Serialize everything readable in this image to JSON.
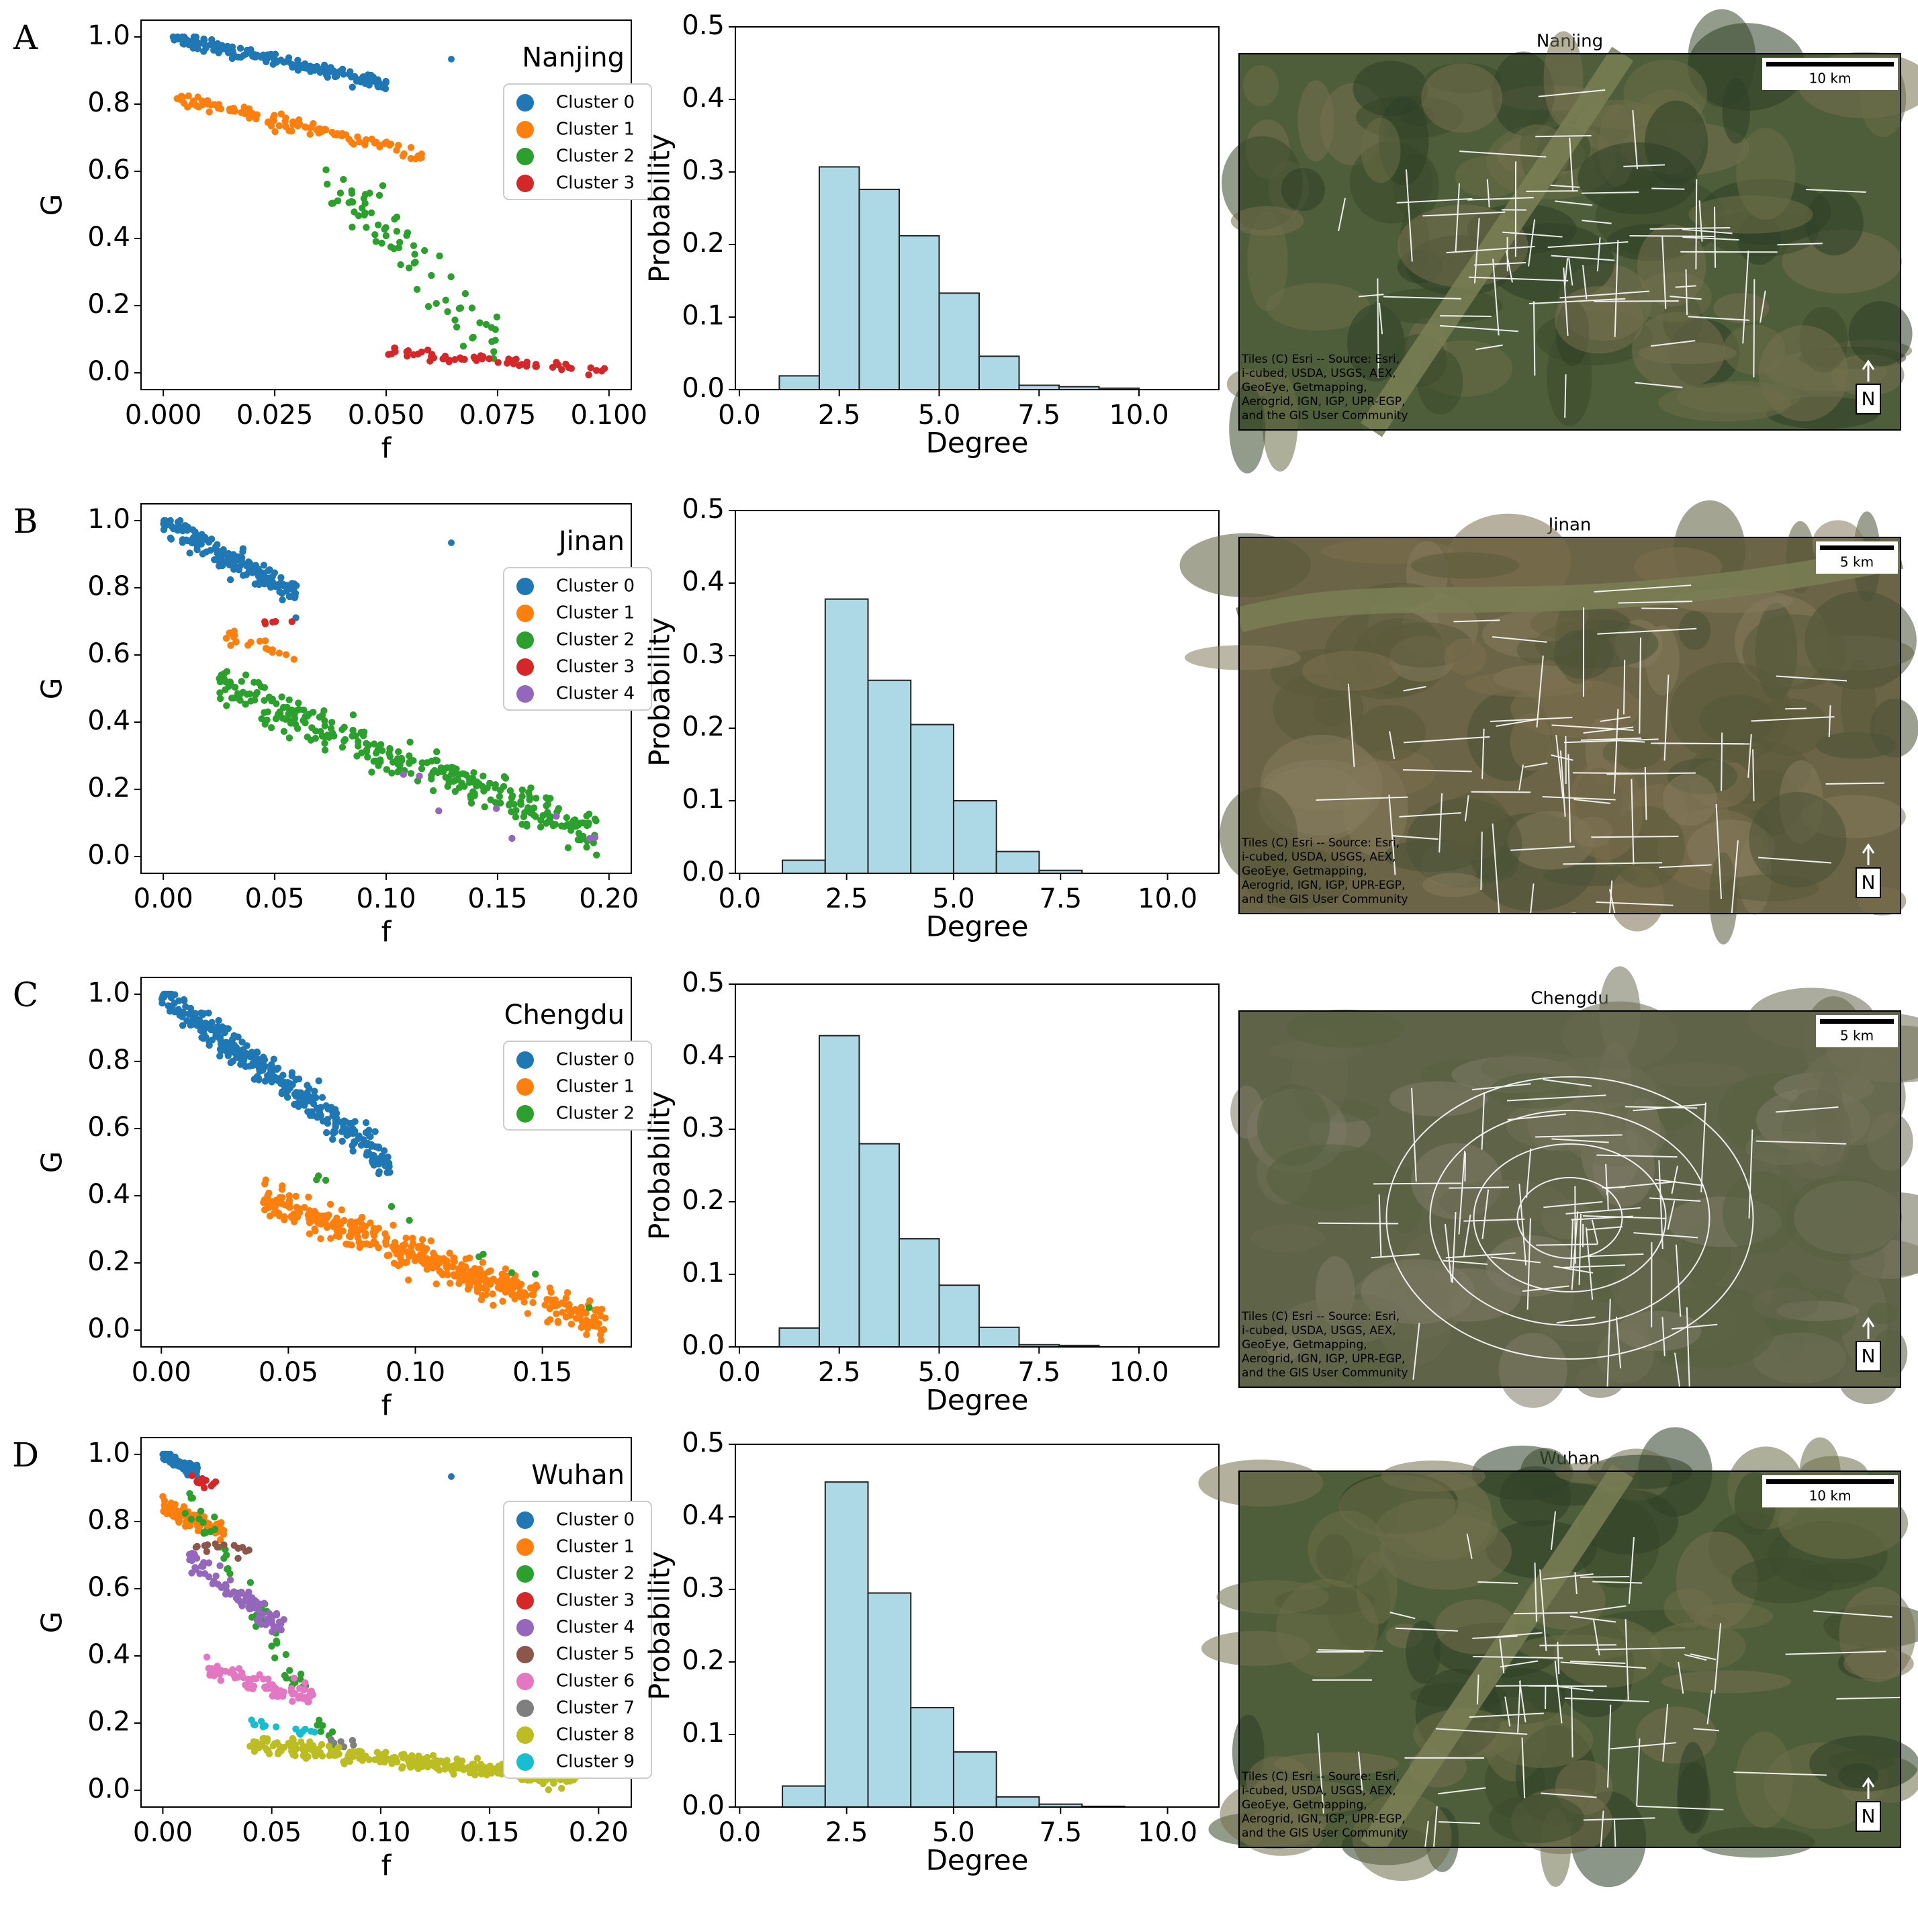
{
  "cluster_colors": [
    "#1f77b4",
    "#ff7f0e",
    "#2ca02c",
    "#d62728",
    "#9467bd",
    "#8c564b",
    "#e377c2",
    "#7f7f7f",
    "#bcbd22",
    "#17becf"
  ],
  "hist_style": {
    "fill": "#add8e6",
    "edge": "#222222"
  },
  "rows": [
    {
      "letter": "A",
      "city": "Nanjing",
      "scatter": {
        "type": "scatter",
        "xlabel": "f",
        "ylabel": "G",
        "xlim": [
          -0.005,
          0.105
        ],
        "ylim": [
          -0.05,
          1.05
        ],
        "xticks": [
          0.0,
          0.025,
          0.05,
          0.075,
          0.1
        ],
        "xtick_labels": [
          "0.000",
          "0.025",
          "0.050",
          "0.075",
          "0.100"
        ],
        "yticks": [
          0.0,
          0.2,
          0.4,
          0.6,
          0.8,
          1.0
        ],
        "ytick_labels": [
          "0.0",
          "0.2",
          "0.4",
          "0.6",
          "0.8",
          "1.0"
        ],
        "legend_title": "Nanjing",
        "legend_has_marker": true,
        "clusters": [
          {
            "name": "Cluster 0",
            "color_index": 0,
            "n": 160,
            "x_range": [
              0.002,
              0.05
            ],
            "y_start": 1.0,
            "y_end": 0.86,
            "spread": 0.018
          },
          {
            "name": "Cluster 1",
            "color_index": 1,
            "n": 110,
            "x_range": [
              0.003,
              0.058
            ],
            "y_start": 0.82,
            "y_end": 0.65,
            "spread": 0.02
          },
          {
            "name": "Cluster 2",
            "color_index": 2,
            "n": 75,
            "x_range": [
              0.036,
              0.075
            ],
            "y_start": 0.6,
            "y_end": 0.08,
            "spread": 0.09
          },
          {
            "name": "Cluster 3",
            "color_index": 3,
            "n": 60,
            "x_range": [
              0.05,
              0.1
            ],
            "y_start": 0.06,
            "y_end": 0.01,
            "spread": 0.015
          }
        ]
      },
      "hist": {
        "type": "bar",
        "xlabel": "Degree",
        "ylabel": "Probability",
        "xlim": [
          -0.1,
          12
        ],
        "ylim": [
          0,
          0.5
        ],
        "xticks": [
          0.0,
          2.5,
          5.0,
          7.5,
          10.0
        ],
        "xtick_labels": [
          "0.0",
          "2.5",
          "5.0",
          "7.5",
          "10.0"
        ],
        "yticks": [
          0.0,
          0.1,
          0.2,
          0.3,
          0.4,
          0.5
        ],
        "ytick_labels": [
          "0.0",
          "0.1",
          "0.2",
          "0.3",
          "0.4",
          "0.5"
        ],
        "bin_edges": [
          1,
          2,
          3,
          4,
          5,
          6,
          7,
          8,
          9,
          10
        ],
        "values": [
          0.019,
          0.307,
          0.276,
          0.212,
          0.133,
          0.046,
          0.006,
          0.004,
          0.002
        ]
      },
      "map": {
        "title": "Nanjing",
        "scale_label": "10 km",
        "attribution": [
          "Tiles (C) Esri -- Source: Esri,",
          "i-cubed, USDA, USGS, AEX,",
          "GeoEye, Getmapping,",
          "Aerogrid, IGN, IGP, UPR-EGP,",
          "and the GIS User Community"
        ],
        "north": "N",
        "palette": "green"
      }
    },
    {
      "letter": "B",
      "city": "Jinan",
      "scatter": {
        "type": "scatter",
        "xlabel": "f",
        "ylabel": "G",
        "xlim": [
          -0.01,
          0.21
        ],
        "ylim": [
          -0.05,
          1.05
        ],
        "xticks": [
          0.0,
          0.05,
          0.1,
          0.15,
          0.2
        ],
        "xtick_labels": [
          "0.00",
          "0.05",
          "0.10",
          "0.15",
          "0.20"
        ],
        "yticks": [
          0.0,
          0.2,
          0.4,
          0.6,
          0.8,
          1.0
        ],
        "ytick_labels": [
          "0.0",
          "0.2",
          "0.4",
          "0.6",
          "0.8",
          "1.0"
        ],
        "legend_title": "Jinan",
        "legend_has_marker": true,
        "clusters": [
          {
            "name": "Cluster 0",
            "color_index": 0,
            "n": 180,
            "x_range": [
              0.0,
              0.06
            ],
            "y_start": 1.0,
            "y_end": 0.78,
            "spread": 0.04
          },
          {
            "name": "Cluster 1",
            "color_index": 1,
            "n": 20,
            "x_range": [
              0.025,
              0.06
            ],
            "y_start": 0.66,
            "y_end": 0.6,
            "spread": 0.03
          },
          {
            "name": "Cluster 2",
            "color_index": 2,
            "n": 320,
            "x_range": [
              0.025,
              0.195
            ],
            "y_start": 0.5,
            "y_end": 0.07,
            "spread": 0.06
          },
          {
            "name": "Cluster 3",
            "color_index": 3,
            "n": 5,
            "x_range": [
              0.045,
              0.06
            ],
            "y_start": 0.7,
            "y_end": 0.7,
            "spread": 0.008
          },
          {
            "name": "Cluster 4",
            "color_index": 4,
            "n": 8,
            "x_range": [
              0.09,
              0.195
            ],
            "y_start": 0.25,
            "y_end": 0.06,
            "spread": 0.05
          }
        ]
      },
      "hist": {
        "type": "bar",
        "xlabel": "Degree",
        "ylabel": "Probability",
        "xlim": [
          -0.1,
          11.2
        ],
        "ylim": [
          0,
          0.5
        ],
        "xticks": [
          0.0,
          2.5,
          5.0,
          7.5,
          10.0
        ],
        "xtick_labels": [
          "0.0",
          "2.5",
          "5.0",
          "7.5",
          "10.0"
        ],
        "yticks": [
          0.0,
          0.1,
          0.2,
          0.3,
          0.4,
          0.5
        ],
        "ytick_labels": [
          "0.0",
          "0.1",
          "0.2",
          "0.3",
          "0.4",
          "0.5"
        ],
        "bin_edges": [
          1,
          2,
          3,
          4,
          5,
          6,
          7,
          8
        ],
        "values": [
          0.018,
          0.378,
          0.266,
          0.205,
          0.1,
          0.03,
          0.004
        ]
      },
      "map": {
        "title": "Jinan",
        "scale_label": "5 km",
        "attribution": [
          "Tiles (C) Esri -- Source: Esri,",
          "i-cubed, USDA, USGS, AEX,",
          "GeoEye, Getmapping,",
          "Aerogrid, IGN, IGP, UPR-EGP,",
          "and the GIS User Community"
        ],
        "north": "N",
        "palette": "brown"
      }
    },
    {
      "letter": "C",
      "city": "Chengdu",
      "scatter": {
        "type": "scatter",
        "xlabel": "f",
        "ylabel": "G",
        "xlim": [
          -0.008,
          0.185
        ],
        "ylim": [
          -0.05,
          1.05
        ],
        "xticks": [
          0.0,
          0.05,
          0.1,
          0.15
        ],
        "xtick_labels": [
          "0.00",
          "0.05",
          "0.10",
          "0.15"
        ],
        "yticks": [
          0.0,
          0.2,
          0.4,
          0.6,
          0.8,
          1.0
        ],
        "ytick_labels": [
          "0.0",
          "0.2",
          "0.4",
          "0.6",
          "0.8",
          "1.0"
        ],
        "legend_title": "Chengdu",
        "legend_has_marker": false,
        "clusters": [
          {
            "name": "Cluster 0",
            "color_index": 0,
            "n": 330,
            "x_range": [
              0.0,
              0.09
            ],
            "y_start": 1.0,
            "y_end": 0.5,
            "spread": 0.05
          },
          {
            "name": "Cluster 1",
            "color_index": 1,
            "n": 420,
            "x_range": [
              0.04,
              0.175
            ],
            "y_start": 0.39,
            "y_end": 0.02,
            "spread": 0.05
          },
          {
            "name": "Cluster 2",
            "color_index": 2,
            "n": 10,
            "x_range": [
              0.06,
              0.175
            ],
            "y_start": 0.46,
            "y_end": 0.05,
            "spread": 0.02
          }
        ]
      },
      "hist": {
        "type": "bar",
        "xlabel": "Degree",
        "ylabel": "Probability",
        "xlim": [
          -0.1,
          12
        ],
        "ylim": [
          0,
          0.5
        ],
        "xticks": [
          0.0,
          2.5,
          5.0,
          7.5,
          10.0
        ],
        "xtick_labels": [
          "0.0",
          "2.5",
          "5.0",
          "7.5",
          "10.0"
        ],
        "yticks": [
          0.0,
          0.1,
          0.2,
          0.3,
          0.4,
          0.5
        ],
        "ytick_labels": [
          "0.0",
          "0.1",
          "0.2",
          "0.3",
          "0.4",
          "0.5"
        ],
        "bin_edges": [
          1,
          2,
          3,
          4,
          5,
          6,
          7,
          8,
          9
        ],
        "values": [
          0.026,
          0.429,
          0.28,
          0.149,
          0.085,
          0.027,
          0.003,
          0.002
        ]
      },
      "map": {
        "title": "Chengdu",
        "scale_label": "5 km",
        "attribution": [
          "Tiles (C) Esri -- Source: Esri,",
          "i-cubed, USDA, USGS, AEX,",
          "GeoEye, Getmapping,",
          "Aerogrid, IGN, IGP, UPR-EGP,",
          "and the GIS User Community"
        ],
        "north": "N",
        "palette": "gray"
      }
    },
    {
      "letter": "D",
      "city": "Wuhan",
      "scatter": {
        "type": "scatter",
        "xlabel": "f",
        "ylabel": "G",
        "xlim": [
          -0.01,
          0.215
        ],
        "ylim": [
          -0.05,
          1.05
        ],
        "xticks": [
          0.0,
          0.05,
          0.1,
          0.15,
          0.2
        ],
        "xtick_labels": [
          "0.00",
          "0.05",
          "0.10",
          "0.15",
          "0.20"
        ],
        "yticks": [
          0.0,
          0.2,
          0.4,
          0.6,
          0.8,
          1.0
        ],
        "ytick_labels": [
          "0.0",
          "0.2",
          "0.4",
          "0.6",
          "0.8",
          "1.0"
        ],
        "legend_title": "Wuhan",
        "legend_has_marker": true,
        "clusters": [
          {
            "name": "Cluster 0",
            "color_index": 0,
            "n": 70,
            "x_range": [
              0.0,
              0.016
            ],
            "y_start": 1.0,
            "y_end": 0.95,
            "spread": 0.02
          },
          {
            "name": "Cluster 1",
            "color_index": 1,
            "n": 90,
            "x_range": [
              0.0,
              0.028
            ],
            "y_start": 0.85,
            "y_end": 0.76,
            "spread": 0.03
          },
          {
            "name": "Cluster 2",
            "color_index": 2,
            "n": 60,
            "x_range": [
              0.01,
              0.08
            ],
            "y_start": 0.9,
            "y_end": 0.12,
            "spread": 0.06
          },
          {
            "name": "Cluster 3",
            "color_index": 3,
            "n": 12,
            "x_range": [
              0.01,
              0.025
            ],
            "y_start": 0.93,
            "y_end": 0.91,
            "spread": 0.015
          },
          {
            "name": "Cluster 4",
            "color_index": 4,
            "n": 90,
            "x_range": [
              0.012,
              0.057
            ],
            "y_start": 0.7,
            "y_end": 0.47,
            "spread": 0.04
          },
          {
            "name": "Cluster 5",
            "color_index": 5,
            "n": 14,
            "x_range": [
              0.015,
              0.04
            ],
            "y_start": 0.73,
            "y_end": 0.71,
            "spread": 0.02
          },
          {
            "name": "Cluster 6",
            "color_index": 6,
            "n": 80,
            "x_range": [
              0.02,
              0.07
            ],
            "y_start": 0.36,
            "y_end": 0.28,
            "spread": 0.035
          },
          {
            "name": "Cluster 7",
            "color_index": 7,
            "n": 6,
            "x_range": [
              0.07,
              0.1
            ],
            "y_start": 0.15,
            "y_end": 0.12,
            "spread": 0.015
          },
          {
            "name": "Cluster 8",
            "color_index": 8,
            "n": 300,
            "x_range": [
              0.04,
              0.19
            ],
            "y_start": 0.14,
            "y_end": 0.03,
            "spread": 0.025
          },
          {
            "name": "Cluster 9",
            "color_index": 9,
            "n": 14,
            "x_range": [
              0.04,
              0.07
            ],
            "y_start": 0.2,
            "y_end": 0.17,
            "spread": 0.015
          }
        ]
      },
      "hist": {
        "type": "bar",
        "xlabel": "Degree",
        "ylabel": "Probability",
        "xlim": [
          -0.1,
          11.2
        ],
        "ylim": [
          0,
          0.5
        ],
        "xticks": [
          0.0,
          2.5,
          5.0,
          7.5,
          10.0
        ],
        "xtick_labels": [
          "0.0",
          "2.5",
          "5.0",
          "7.5",
          "10.0"
        ],
        "yticks": [
          0.0,
          0.1,
          0.2,
          0.3,
          0.4,
          0.5
        ],
        "ytick_labels": [
          "0.0",
          "0.1",
          "0.2",
          "0.3",
          "0.4",
          "0.5"
        ],
        "bin_edges": [
          1,
          2,
          3,
          4,
          5,
          6,
          7,
          8,
          9
        ],
        "values": [
          0.029,
          0.448,
          0.295,
          0.137,
          0.076,
          0.014,
          0.004,
          0.001
        ]
      },
      "map": {
        "title": "Wuhan",
        "scale_label": "10 km",
        "attribution": [
          "Tiles (C) Esri -- Source: Esri,",
          "i-cubed, USDA, USGS, AEX,",
          "GeoEye, Getmapping,",
          "Aerogrid, IGN, IGP, UPR-EGP,",
          "and the GIS User Community"
        ],
        "north": "N",
        "palette": "green"
      }
    }
  ]
}
